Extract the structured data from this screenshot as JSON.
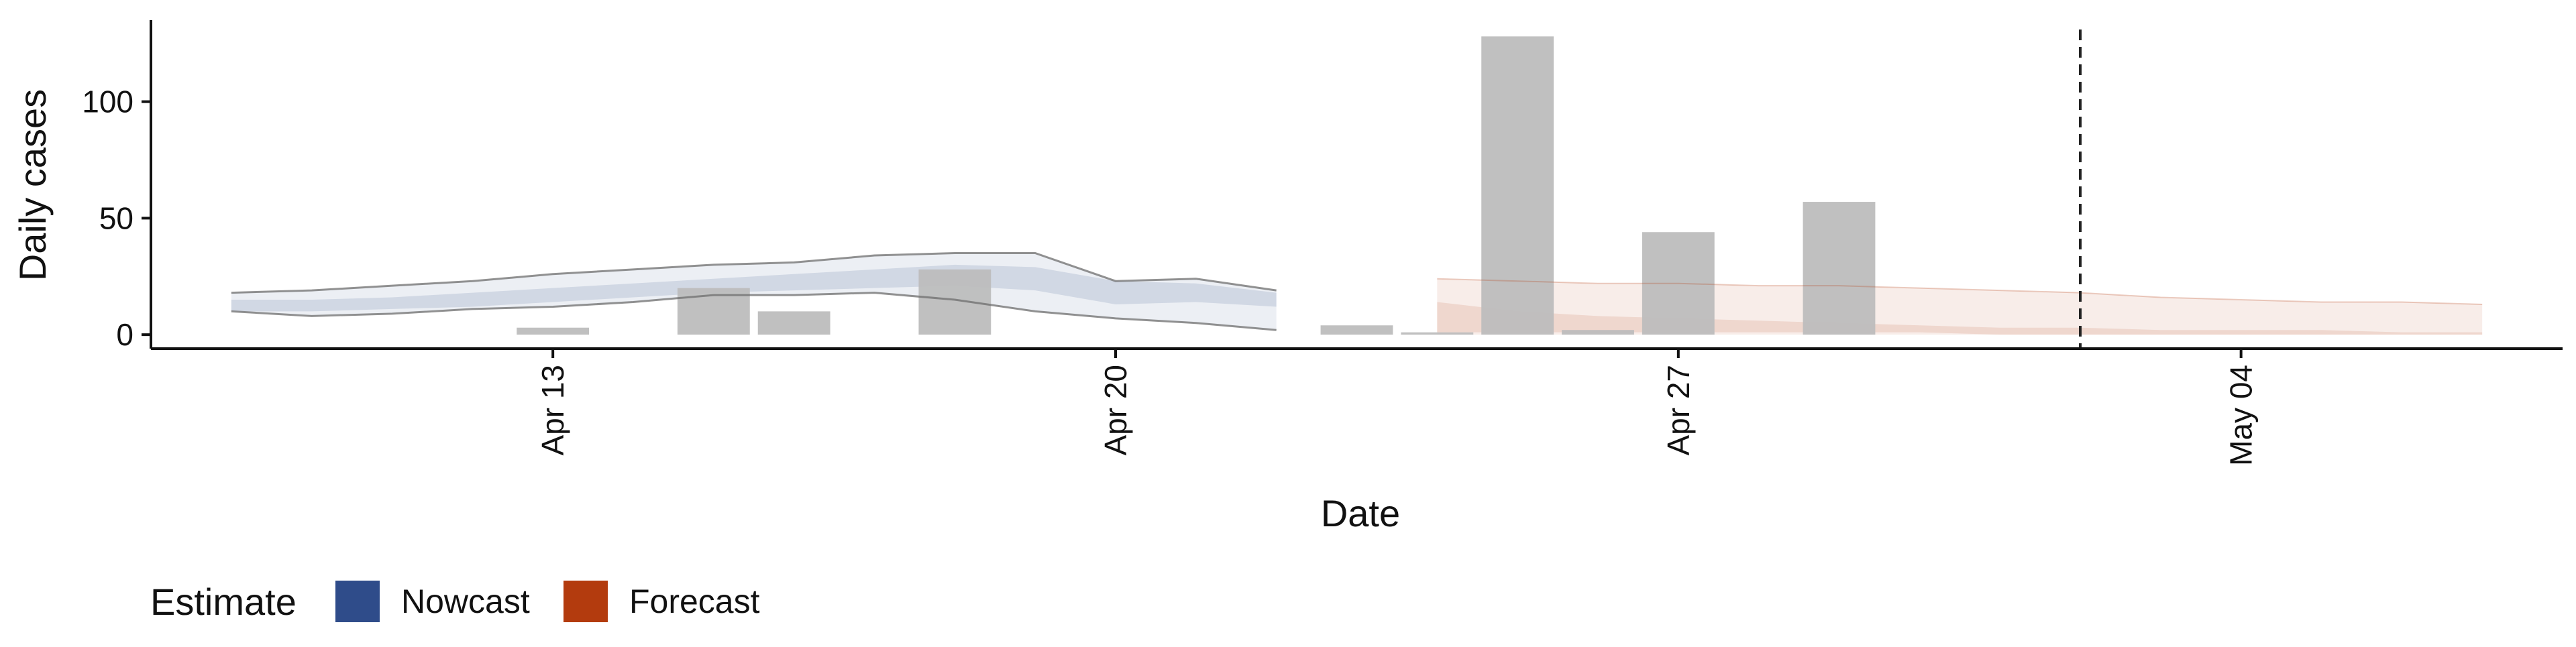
{
  "chart_data": {
    "type": "bar",
    "xlabel": "Date",
    "ylabel": "Daily cases",
    "x_ticks": [
      "Apr 13",
      "Apr 20",
      "Apr 27",
      "May 04"
    ],
    "x_tick_dates": [
      "2020-04-13",
      "2020-04-20",
      "2020-04-27",
      "2020-05-04"
    ],
    "x_range": [
      "2020-04-08",
      "2020-05-08"
    ],
    "y_ticks": [
      0,
      50,
      100
    ],
    "ylim": [
      -6,
      135
    ],
    "forecast_cutoff_date": "2020-05-02",
    "observed_cases": [
      {
        "date": "2020-04-12",
        "cases": 0
      },
      {
        "date": "2020-04-13",
        "cases": 3
      },
      {
        "date": "2020-04-14",
        "cases": 0
      },
      {
        "date": "2020-04-15",
        "cases": 20
      },
      {
        "date": "2020-04-16",
        "cases": 10
      },
      {
        "date": "2020-04-17",
        "cases": 0
      },
      {
        "date": "2020-04-18",
        "cases": 28
      },
      {
        "date": "2020-04-19",
        "cases": 0
      },
      {
        "date": "2020-04-20",
        "cases": 0
      },
      {
        "date": "2020-04-21",
        "cases": 0
      },
      {
        "date": "2020-04-22",
        "cases": 0
      },
      {
        "date": "2020-04-23",
        "cases": 4
      },
      {
        "date": "2020-04-24",
        "cases": 1
      },
      {
        "date": "2020-04-25",
        "cases": 128
      },
      {
        "date": "2020-04-26",
        "cases": 2
      },
      {
        "date": "2020-04-27",
        "cases": 44
      },
      {
        "date": "2020-04-28",
        "cases": 0
      },
      {
        "date": "2020-04-29",
        "cases": 57
      }
    ],
    "nowcast": {
      "dates": [
        "2020-04-09",
        "2020-04-10",
        "2020-04-11",
        "2020-04-12",
        "2020-04-13",
        "2020-04-14",
        "2020-04-15",
        "2020-04-16",
        "2020-04-17",
        "2020-04-18",
        "2020-04-19",
        "2020-04-20",
        "2020-04-21",
        "2020-04-22",
        "2020-04-23"
      ],
      "upper_90": [
        18,
        19,
        21,
        23,
        26,
        28,
        30,
        31,
        34,
        35,
        35,
        23,
        24,
        19,
        null
      ],
      "upper_50": [
        15,
        15,
        16,
        18,
        20,
        22,
        24,
        26,
        28,
        30,
        29,
        23,
        22,
        18,
        null
      ],
      "lower_50": [
        10,
        10,
        11,
        12,
        14,
        16,
        18,
        19,
        20,
        21,
        19,
        13,
        14,
        12,
        null
      ],
      "lower_90": [
        10,
        8,
        9,
        11,
        12,
        14,
        17,
        17,
        18,
        15,
        10,
        7,
        5,
        2,
        null
      ]
    },
    "forecast": {
      "dates": [
        "2020-04-24",
        "2020-04-25",
        "2020-04-26",
        "2020-04-27",
        "2020-04-28",
        "2020-04-29",
        "2020-04-30",
        "2020-05-01",
        "2020-05-02",
        "2020-05-03",
        "2020-05-04",
        "2020-05-05",
        "2020-05-06",
        "2020-05-07"
      ],
      "upper_90": [
        24,
        23,
        22,
        22,
        21,
        21,
        20,
        19,
        18,
        16,
        15,
        14,
        14,
        13
      ],
      "upper_50": [
        14,
        10,
        8,
        7,
        6,
        5,
        4,
        3,
        3,
        2,
        2,
        2,
        1,
        1
      ],
      "lower_50": [
        1,
        1,
        1,
        1,
        1,
        1,
        1,
        0,
        0,
        0,
        0,
        0,
        0,
        0
      ],
      "lower_90": [
        0,
        0,
        0,
        0,
        0,
        0,
        0,
        0,
        0,
        0,
        0,
        0,
        0,
        0
      ]
    },
    "legend": {
      "title": "Estimate",
      "placement": "bottom-left",
      "entries": [
        {
          "label": "Nowcast",
          "color": "#2f4c8a"
        },
        {
          "label": "Forecast",
          "color": "#b33b0e"
        }
      ]
    },
    "colors": {
      "bars": "#bdbdbd",
      "nowcast_band": "#2f4c8a",
      "forecast_band": "#b33b0e",
      "lines": "#6e6e6e",
      "cutoff_line": "#222222"
    }
  }
}
